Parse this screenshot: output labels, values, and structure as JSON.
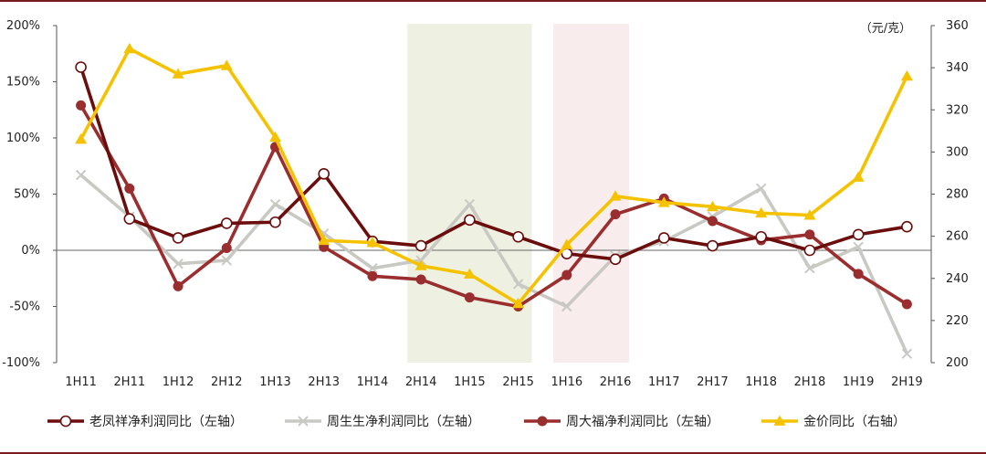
{
  "chart_data": {
    "type": "line",
    "categories": [
      "1H11",
      "2H11",
      "1H12",
      "2H12",
      "1H13",
      "2H13",
      "1H14",
      "2H14",
      "1H15",
      "2H15",
      "1H16",
      "2H16",
      "1H17",
      "2H17",
      "1H18",
      "2H18",
      "1H19",
      "2H19"
    ],
    "y_left": {
      "range": [
        -100,
        200
      ],
      "ticks": [
        "-100%",
        "-50%",
        "0%",
        "50%",
        "100%",
        "150%",
        "200%"
      ],
      "tick_values": [
        -100,
        -50,
        0,
        50,
        100,
        150,
        200
      ]
    },
    "y_right": {
      "range": [
        200,
        360
      ],
      "ticks": [
        "200",
        "220",
        "240",
        "260",
        "280",
        "300",
        "320",
        "340",
        "360"
      ],
      "tick_values": [
        200,
        220,
        240,
        260,
        280,
        300,
        320,
        340,
        360
      ],
      "unit": "（元/克）"
    },
    "shaded_periods": [
      {
        "from": "2H14",
        "to": "2H15",
        "color": "#eef1e2"
      },
      {
        "from": "1H16",
        "to": "2H16",
        "color": "#f9ecec"
      }
    ],
    "series": [
      {
        "name": "老凤祥净利润同比（左轴）",
        "axis": "left",
        "color": "#6b0d0d",
        "marker": "hollow-circle",
        "values": [
          163,
          28,
          11,
          24,
          25,
          68,
          8,
          4,
          27,
          12,
          -3,
          -8,
          11,
          4,
          12,
          0,
          14,
          21
        ]
      },
      {
        "name": "周生生净利润同比（左轴）",
        "axis": "left",
        "color": "#c9c9c3",
        "marker": "x",
        "values": [
          67,
          30,
          -12,
          -9,
          41,
          15,
          -16,
          -9,
          41,
          -30,
          -50,
          -5,
          8,
          30,
          55,
          -16,
          3,
          -92
        ]
      },
      {
        "name": "周大福净利润同比（左轴）",
        "axis": "left",
        "color": "#9a2d2d",
        "marker": "filled-circle",
        "values": [
          129,
          55,
          -32,
          2,
          92,
          3,
          -23,
          -26,
          -42,
          -50,
          -22,
          32,
          46,
          26,
          9,
          14,
          -21,
          -48
        ]
      },
      {
        "name": "金价同比（右轴）",
        "axis": "right",
        "color": "#f5c200",
        "marker": "triangle",
        "values": [
          306,
          349,
          337,
          341,
          307,
          258,
          257,
          246,
          242,
          228,
          256,
          279,
          276,
          274,
          271,
          270,
          288,
          336
        ]
      }
    ],
    "legend_position": "bottom",
    "grid": false
  }
}
